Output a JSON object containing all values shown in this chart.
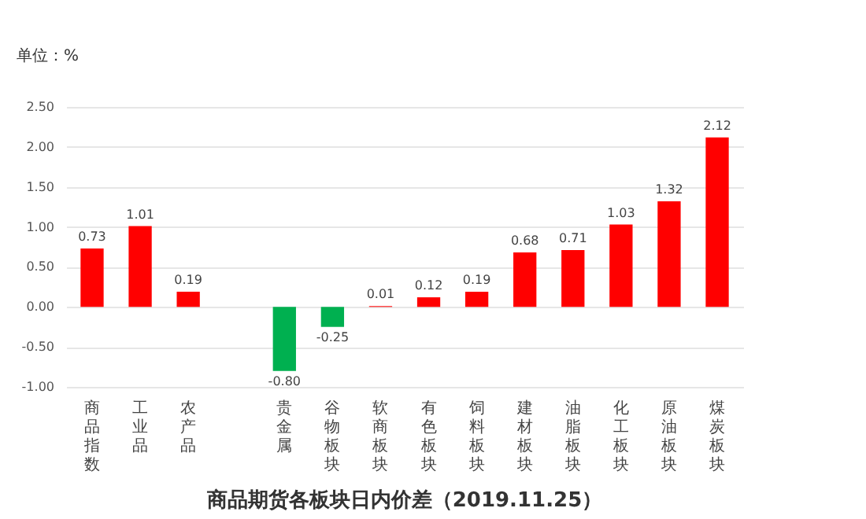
{
  "chart_data": {
    "type": "bar",
    "title": "商品期货各板块日内价差（2019.11.25）",
    "ylabel": "单位：%",
    "categories": [
      "商品指数",
      "工业品",
      "农产品",
      null,
      "贵金属",
      "谷物板块",
      "软商板块",
      "有色板块",
      "饲料板块",
      "建材板块",
      "油脂板块",
      "化工板块",
      "原油板块",
      "煤炭板块"
    ],
    "values": [
      0.73,
      1.01,
      0.19,
      null,
      -0.8,
      -0.25,
      0.01,
      0.12,
      0.19,
      0.68,
      0.71,
      1.03,
      1.32,
      2.12
    ],
    "value_labels": [
      "0.73",
      "1.01",
      "0.19",
      null,
      "-0.80",
      "-0.25",
      "0.01",
      "0.12",
      "0.19",
      "0.68",
      "0.71",
      "1.03",
      "1.32",
      "2.12"
    ],
    "colors": [
      "#ff0000",
      "#ff0000",
      "#ff0000",
      "#ff0000",
      "#00b050",
      "#00b050",
      "#ff0000",
      "#ff0000",
      "#ff0000",
      "#ff0000",
      "#ff0000",
      "#ff0000",
      "#ff0000",
      "#ff0000"
    ],
    "ylim": [
      -1,
      2.5
    ],
    "yticks": [
      {
        "value": -1,
        "label": "-1.00"
      },
      {
        "value": -0.5,
        "label": "-0.50"
      },
      {
        "value": 0,
        "label": "0.00"
      },
      {
        "value": 0.5,
        "label": "0.50"
      },
      {
        "value": 1,
        "label": "1.00"
      },
      {
        "value": 1.5,
        "label": "1.50"
      },
      {
        "value": 2,
        "label": "2.00"
      },
      {
        "value": 2.5,
        "label": "2.50"
      }
    ],
    "grid": "y"
  }
}
